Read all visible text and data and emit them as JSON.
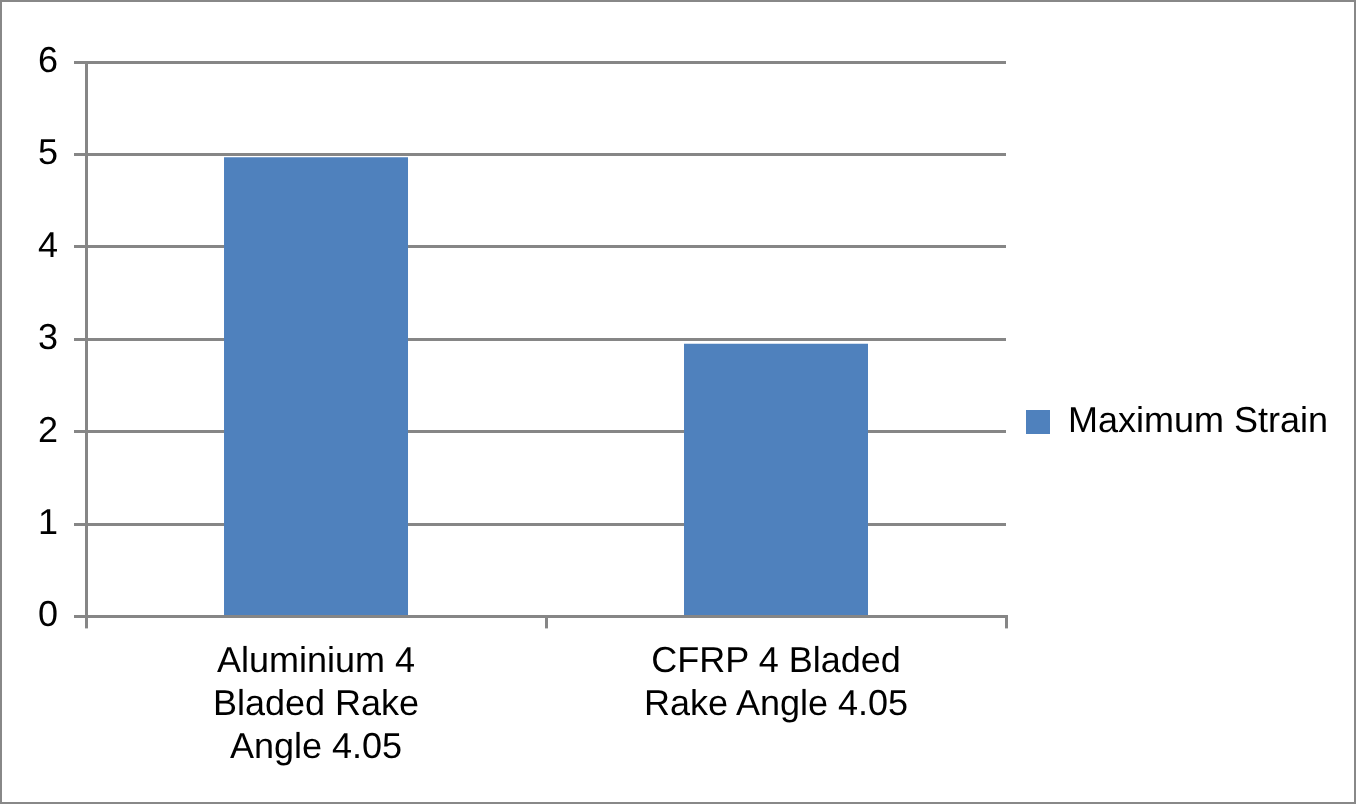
{
  "chart_data": {
    "type": "bar",
    "categories": [
      "Aluminium 4 Bladed Rake Angle 4.05",
      "CFRP 4 Bladed Rake Angle 4.05"
    ],
    "series": [
      {
        "name": "Maximum Strain",
        "color": "#4f81bd",
        "values": [
          4.97,
          2.95
        ]
      }
    ],
    "ylim": [
      0,
      6
    ],
    "yticks": [
      0,
      1,
      2,
      3,
      4,
      5,
      6
    ],
    "grid": "y",
    "legend": "right"
  }
}
